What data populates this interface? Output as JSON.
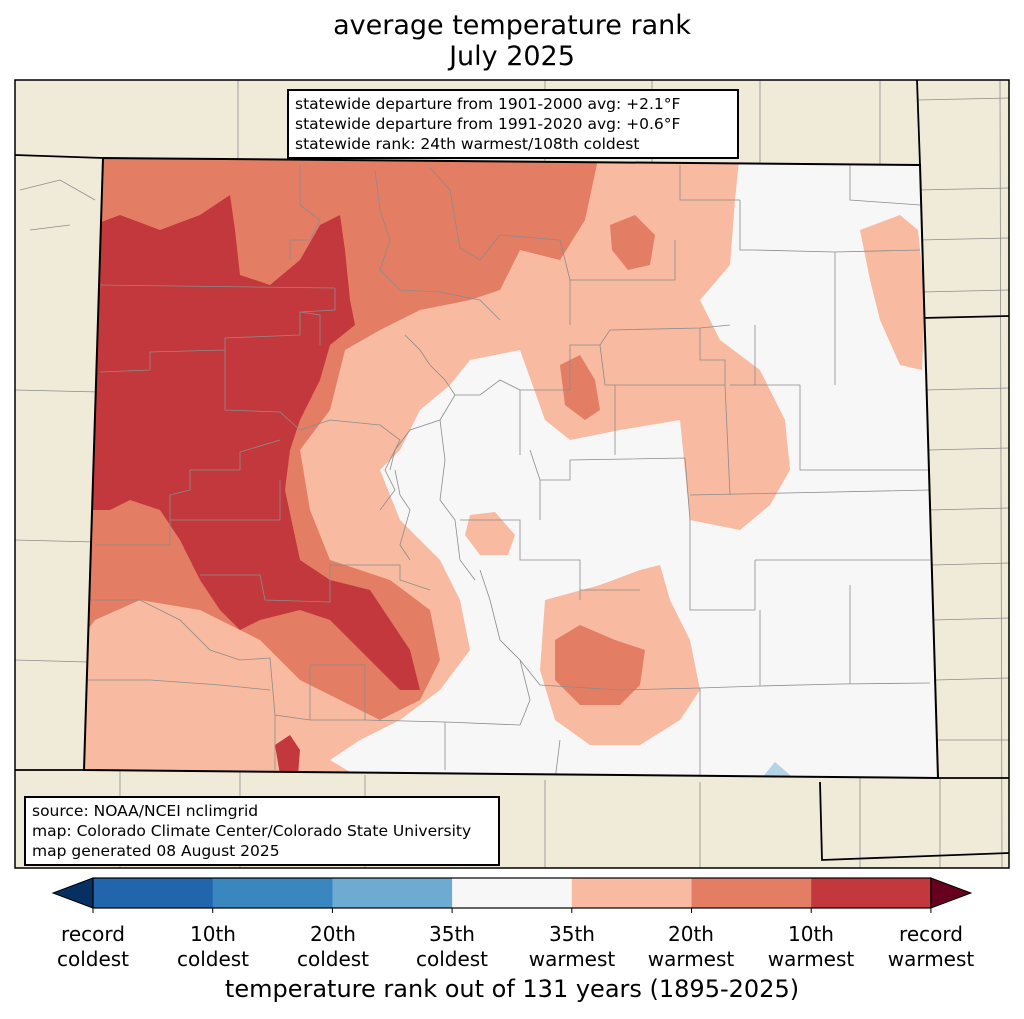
{
  "title": {
    "line1": "average temperature rank",
    "line2": "July 2025"
  },
  "stats": {
    "line1": "statewide departure from 1901-2000 avg: +2.1°F",
    "line2": "statewide departure from 1991-2020 avg: +0.6°F",
    "line3": "statewide rank: 24th warmest/108th coldest"
  },
  "source": {
    "line1": "source: NOAA/NCEI nclimgrid",
    "line2": "map: Colorado Climate Center/Colorado State University",
    "line3": "map generated 08 August 2025"
  },
  "colorbar": {
    "title": "temperature rank out of 131 years (1895-2025)",
    "categories": [
      {
        "color": "#2166ac",
        "label": "record coldest"
      },
      {
        "color": "#3a87bf",
        "label": "10th coldest"
      },
      {
        "color": "#6dabd3",
        "label": "20th coldest"
      },
      {
        "color": "#b3d4e7",
        "label": "35th coldest"
      },
      {
        "color": "#f7f7f7",
        "label": "35th warmest"
      },
      {
        "color": "#f8baa0",
        "label": "20th warmest"
      },
      {
        "color": "#e37d64",
        "label": "10th warmest"
      },
      {
        "color": "#c3383c",
        "label": "record warmest"
      }
    ],
    "tick_labels": [
      {
        "line1": "record",
        "line2": "coldest"
      },
      {
        "line1": "10th",
        "line2": "coldest"
      },
      {
        "line1": "20th",
        "line2": "coldest"
      },
      {
        "line1": "35th",
        "line2": "coldest"
      },
      {
        "line1": "35th",
        "line2": "warmest"
      },
      {
        "line1": "20th",
        "line2": "warmest"
      },
      {
        "line1": "10th",
        "line2": "warmest"
      },
      {
        "line1": "record",
        "line2": "warmest"
      }
    ],
    "under_color": "#053061",
    "over_color": "#67001f"
  },
  "colors": {
    "land_outside": "#efebd8",
    "record_warmest": "#c3383c",
    "tenth_warmest": "#e37d64",
    "twentieth_warmest": "#f8baa0",
    "near_normal": "#f7f7f7",
    "thirtyfifth_coldest": "#b3d4e7"
  }
}
